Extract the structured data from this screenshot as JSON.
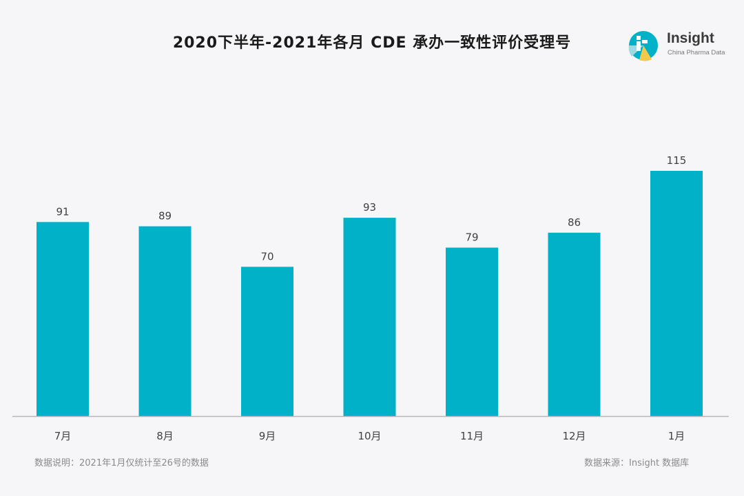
{
  "chart_data": {
    "type": "bar",
    "title": "2020下半年-2021年各月 CDE 承办一致性评价受理号",
    "categories": [
      "7月",
      "8月",
      "9月",
      "10月",
      "11月",
      "12月",
      "1月"
    ],
    "values": [
      91,
      89,
      70,
      93,
      79,
      86,
      115
    ],
    "ylim": [
      0,
      115
    ],
    "grid": false,
    "legend": "none",
    "colors": {
      "bar": "#00b1c8",
      "axis": "#b5b5b5",
      "label": "#404040"
    }
  },
  "logo": {
    "name": "Insight",
    "subtitle": "China Pharma Data"
  },
  "notes": {
    "left": "数据说明：2021年1月仅统计至26号的数据",
    "right": "数据来源：Insight 数据库"
  }
}
